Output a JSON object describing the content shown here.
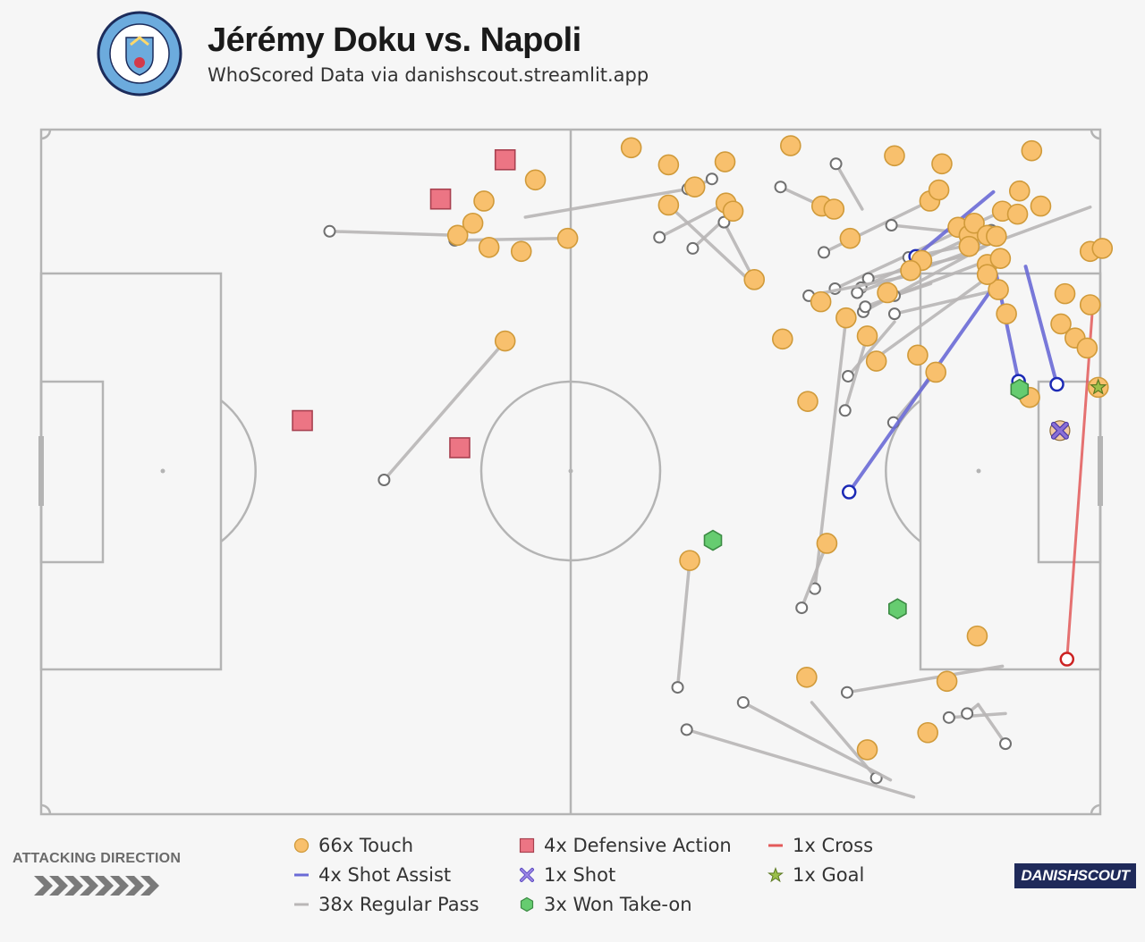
{
  "header": {
    "title": "Jérémy Doku vs. Napoli",
    "subtitle": "WhoScored Data via danishscout.streamlit.app",
    "crest_text": "MANCHESTER CITY"
  },
  "legend": {
    "touch": "66x Touch",
    "shot_assist": "4x Shot Assist",
    "regular_pass": "38x Regular Pass",
    "defensive_action": "4x Defensive Action",
    "shot": "1x Shot",
    "won_take_on": "3x Won Take-on",
    "cross": "1x Cross",
    "goal": "1x Goal"
  },
  "footer": {
    "attacking_direction": "ATTACKING DIRECTION",
    "brand": "DANISHSCOUT"
  },
  "colors": {
    "touch": "#f8c06d",
    "touch_edge": "#d09a3a",
    "shot_assist": "#6b6bd6",
    "regular_pass": "#b9b6b6",
    "defensive_action": "#ec7584",
    "shot": "#8a6fd6",
    "won_take_on": "#66cc70",
    "cross": "#e35a5a",
    "goal": "#9bbf4a",
    "pitch_line": "#b4b4b4"
  },
  "chart_data": {
    "type": "scatter",
    "pitch": {
      "length": 105,
      "width": 68,
      "attacking_direction": "left-to-right"
    },
    "touches": [
      [
        58.5,
        1.8
      ],
      [
        62.2,
        3.5
      ],
      [
        67.8,
        3.2
      ],
      [
        74.3,
        1.6
      ],
      [
        84.6,
        2.6
      ],
      [
        89.3,
        3.4
      ],
      [
        98.2,
        2.1
      ],
      [
        62.2,
        7.5
      ],
      [
        64.8,
        5.7
      ],
      [
        67.9,
        7.3
      ],
      [
        68.6,
        8.1
      ],
      [
        77.4,
        7.6
      ],
      [
        78.6,
        7.9
      ],
      [
        80.2,
        10.8
      ],
      [
        88.1,
        7.1
      ],
      [
        90.9,
        9.7
      ],
      [
        92.0,
        10.5
      ],
      [
        92.5,
        9.3
      ],
      [
        93.8,
        10.5
      ],
      [
        95.3,
        8.1
      ],
      [
        96.8,
        8.4
      ],
      [
        97.0,
        6.1
      ],
      [
        99.1,
        7.6
      ],
      [
        104.0,
        12.1
      ],
      [
        105.2,
        11.8
      ],
      [
        101.5,
        16.3
      ],
      [
        104.0,
        17.4
      ],
      [
        102.5,
        20.7
      ],
      [
        103.7,
        21.7
      ],
      [
        95.7,
        18.3
      ],
      [
        94.9,
        15.9
      ],
      [
        93.8,
        13.4
      ],
      [
        92.0,
        11.6
      ],
      [
        87.3,
        13.0
      ],
      [
        86.2,
        14.0
      ],
      [
        83.9,
        16.2
      ],
      [
        79.8,
        18.7
      ],
      [
        77.3,
        17.1
      ],
      [
        73.5,
        20.8
      ],
      [
        70.7,
        14.9
      ],
      [
        88.7,
        24.1
      ],
      [
        95.1,
        12.8
      ],
      [
        93.8,
        14.4
      ],
      [
        98.0,
        26.6
      ],
      [
        101.1,
        19.3
      ],
      [
        94.7,
        10.6
      ],
      [
        82.8,
        23.0
      ],
      [
        76.0,
        27.0
      ],
      [
        46.0,
        21.0
      ],
      [
        49.0,
        5.0
      ],
      [
        52.2,
        10.8
      ],
      [
        43.9,
        7.1
      ],
      [
        41.3,
        10.5
      ],
      [
        44.4,
        11.7
      ],
      [
        47.6,
        12.1
      ],
      [
        42.8,
        9.3
      ],
      [
        86.9,
        22.4
      ],
      [
        89.0,
        6.0
      ],
      [
        81.9,
        20.5
      ],
      [
        77.9,
        41.1
      ],
      [
        64.3,
        42.8
      ],
      [
        75.9,
        54.4
      ],
      [
        92.8,
        50.3
      ],
      [
        89.8,
        54.8
      ],
      [
        87.9,
        59.9
      ],
      [
        81.9,
        61.6
      ]
    ],
    "defensive_actions": [
      [
        46.0,
        3.0
      ],
      [
        39.6,
        6.9
      ],
      [
        25.9,
        28.9
      ],
      [
        41.5,
        31.6
      ]
    ],
    "won_take_ons": [
      [
        66.6,
        40.8
      ],
      [
        84.9,
        47.6
      ],
      [
        97.0,
        25.8
      ]
    ],
    "shot": [
      [
        101.0,
        29.9
      ]
    ],
    "goal": [
      [
        104.8,
        25.6
      ]
    ],
    "cross": {
      "start": [
        101.7,
        52.6
      ],
      "end": [
        104.3,
        16.9
      ]
    },
    "shot_assists": [
      {
        "start": [
          94.4,
          6.2
        ],
        "end": [
          86.7,
          12.6
        ]
      },
      {
        "start": [
          94.7,
          14.4
        ],
        "end": [
          96.9,
          25.0
        ]
      },
      {
        "start": [
          97.6,
          13.6
        ],
        "end": [
          100.7,
          25.3
        ]
      },
      {
        "start": [
          94.7,
          15.2
        ],
        "end": [
          80.1,
          36.0
        ]
      }
    ],
    "regular_passes": [
      [
        [
          46.0,
          21.0
        ],
        [
          34.0,
          34.8
        ]
      ],
      [
        [
          52.2,
          10.8
        ],
        [
          41.0,
          11.0
        ]
      ],
      [
        [
          41.3,
          10.5
        ],
        [
          28.6,
          10.1
        ]
      ],
      [
        [
          48.0,
          8.7
        ],
        [
          64.1,
          5.9
        ]
      ],
      [
        [
          67.9,
          7.3
        ],
        [
          61.3,
          10.7
        ]
      ],
      [
        [
          64.8,
          5.7
        ],
        [
          66.5,
          4.9
        ]
      ],
      [
        [
          68.6,
          8.1
        ],
        [
          64.6,
          11.8
        ]
      ],
      [
        [
          69.8,
          14.6
        ],
        [
          62.3,
          7.6
        ]
      ],
      [
        [
          77.4,
          7.6
        ],
        [
          73.3,
          5.7
        ]
      ],
      [
        [
          81.4,
          7.9
        ],
        [
          78.8,
          3.4
        ]
      ],
      [
        [
          88.1,
          7.1
        ],
        [
          77.6,
          12.2
        ]
      ],
      [
        [
          94.7,
          10.6
        ],
        [
          84.3,
          9.5
        ]
      ],
      [
        [
          93.0,
          10.3
        ],
        [
          81.3,
          15.7
        ]
      ],
      [
        [
          94.1,
          11.3
        ],
        [
          81.5,
          18.1
        ]
      ],
      [
        [
          95.3,
          8.1
        ],
        [
          78.7,
          15.8
        ]
      ],
      [
        [
          104.0,
          7.7
        ],
        [
          80.9,
          16.2
        ]
      ],
      [
        [
          93.8,
          11.1
        ],
        [
          86.0,
          12.7
        ]
      ],
      [
        [
          95.2,
          12.5
        ],
        [
          81.7,
          17.6
        ]
      ],
      [
        [
          92.6,
          12.3
        ],
        [
          82.0,
          14.8
        ]
      ],
      [
        [
          94.9,
          15.9
        ],
        [
          84.6,
          18.3
        ]
      ],
      [
        [
          94.5,
          14.2
        ],
        [
          82.9,
          22.6
        ]
      ],
      [
        [
          84.6,
          19.1
        ],
        [
          80.0,
          24.5
        ]
      ],
      [
        [
          85.7,
          14.6
        ],
        [
          76.1,
          16.5
        ]
      ],
      [
        [
          81.9,
          20.5
        ],
        [
          79.7,
          27.9
        ]
      ],
      [
        [
          79.8,
          18.7
        ],
        [
          76.7,
          45.6
        ]
      ],
      [
        [
          77.9,
          41.1
        ],
        [
          75.4,
          47.5
        ]
      ],
      [
        [
          64.3,
          42.8
        ],
        [
          63.1,
          55.4
        ]
      ],
      [
        [
          95.3,
          53.3
        ],
        [
          79.9,
          55.9
        ]
      ],
      [
        [
          95.6,
          58.0
        ],
        [
          90.0,
          58.4
        ]
      ],
      [
        [
          92.9,
          57.1
        ],
        [
          91.8,
          58.0
        ]
      ],
      [
        [
          92.9,
          57.1
        ],
        [
          95.6,
          61.0
        ]
      ],
      [
        [
          76.4,
          56.9
        ],
        [
          82.8,
          64.4
        ]
      ],
      [
        [
          86.5,
          66.3
        ],
        [
          64.0,
          59.6
        ]
      ],
      [
        [
          84.2,
          64.6
        ],
        [
          69.6,
          56.9
        ]
      ],
      [
        [
          70.4,
          14.4
        ],
        [
          67.7,
          9.2
        ]
      ],
      [
        [
          88.2,
          15.3
        ],
        [
          84.6,
          16.5
        ]
      ],
      [
        [
          92.0,
          12.5
        ],
        [
          94.2,
          10.0
        ]
      ],
      [
        [
          88.7,
          24.1
        ],
        [
          84.5,
          29.1
        ]
      ]
    ]
  }
}
